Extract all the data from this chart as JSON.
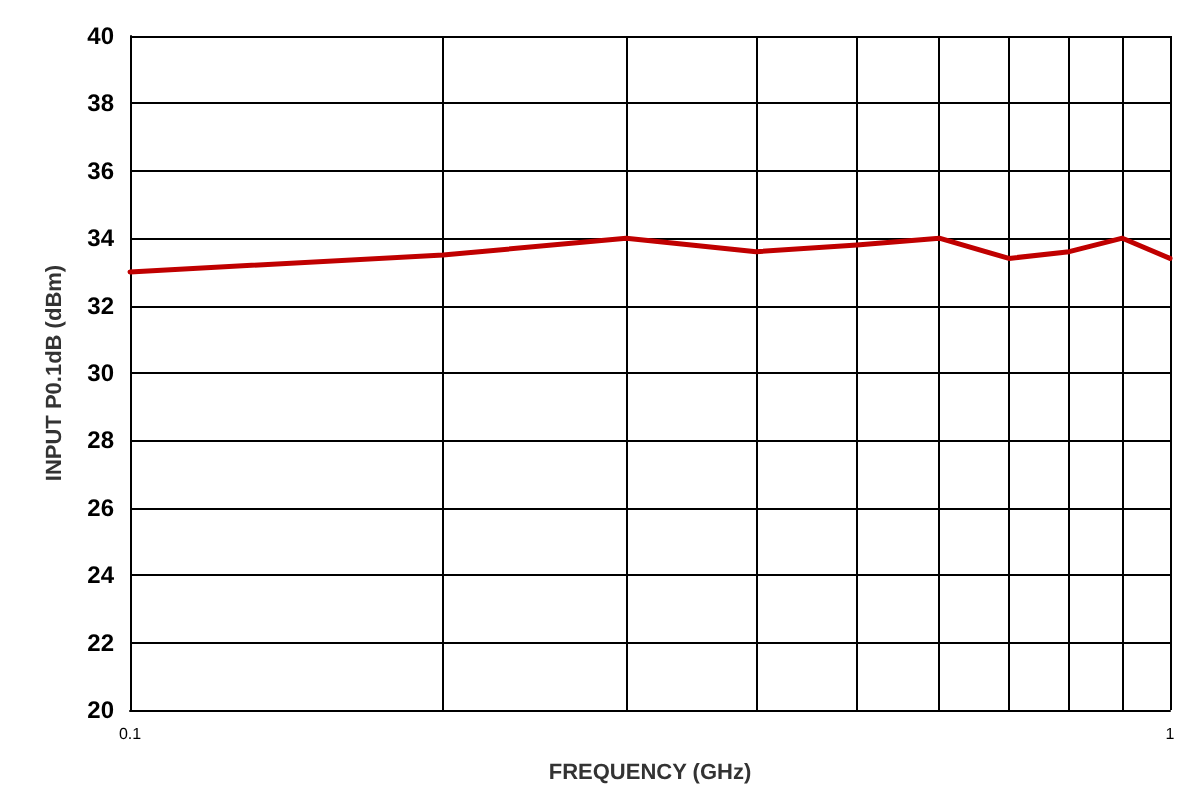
{
  "chart_data": {
    "type": "line",
    "xlabel": "FREQUENCY (GHz)",
    "ylabel": "INPUT P0.1dB (dBm)",
    "log": "x",
    "grid": true,
    "marker": "none",
    "line_style": "solid",
    "x": [
      0.1,
      0.2,
      0.3,
      0.4,
      0.5,
      0.6,
      0.7,
      0.8,
      0.9,
      1
    ],
    "series": [
      {
        "color": "#c00000",
        "values": [
          33.0,
          33.5,
          34.0,
          33.6,
          33.8,
          34.0,
          33.4,
          33.6,
          34.0,
          33.4
        ]
      }
    ],
    "xlim": [
      0.1,
      1
    ],
    "xticks": [
      0.1,
      {
        "value": 0.2,
        "label": null
      },
      {
        "value": 0.3,
        "label": null
      },
      {
        "value": 0.4,
        "label": null
      },
      {
        "value": 0.5,
        "label": null
      },
      {
        "value": 0.6,
        "label": null
      },
      {
        "value": 0.7,
        "label": null
      },
      {
        "value": 0.8,
        "label": null
      },
      {
        "value": 0.9,
        "label": null
      },
      1
    ],
    "ylim": [
      20,
      40
    ],
    "yticks": [
      20,
      22,
      24,
      26,
      28,
      30,
      32,
      34,
      36,
      38,
      40
    ]
  }
}
